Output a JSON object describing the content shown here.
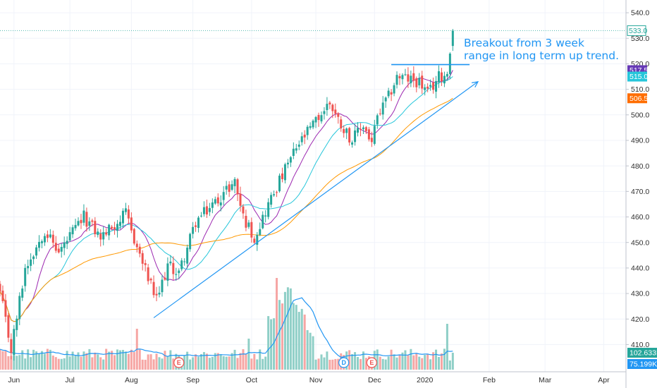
{
  "colors": {
    "up": "#26a69a",
    "down": "#ef5350",
    "vol_up": "#8fcfc7",
    "vol_down": "#f6a6a4",
    "ma_fast": "#9c27b0",
    "ma_mid": "#26c6da",
    "ma_slow": "#ff9800",
    "vol_ma": "#2196f3",
    "annotation": "#2196f3",
    "grid": "#f0f3fa",
    "axis_text": "#2f2f2f"
  },
  "price_tags": [
    {
      "label": "533.0",
      "value": 533.0,
      "style": "outline",
      "color": "#26a69a"
    },
    {
      "label": "517.5",
      "value": 517.5,
      "style": "fill",
      "color": "#673ab7"
    },
    {
      "label": "515.0",
      "value": 515.0,
      "style": "fill",
      "color": "#26c6da"
    },
    {
      "label": "506.5",
      "value": 506.5,
      "style": "fill",
      "color": "#ff6d00"
    }
  ],
  "volume_tags": [
    {
      "label": "102.633K",
      "color": "#26a69a",
      "level": "upper"
    },
    {
      "label": "75.199K",
      "color": "#2196f3",
      "level": "lower"
    }
  ],
  "annotation_text": {
    "line1": "Breakout from 3 week",
    "line2": "range in long term up trend."
  },
  "event_markers": [
    {
      "label": "E",
      "date_index": 64,
      "color": "#ef5350"
    },
    {
      "label": "D",
      "date_index": 123,
      "color": "#2196f3"
    },
    {
      "label": "E",
      "date_index": 133,
      "color": "#ef5350"
    }
  ],
  "chart_data": {
    "type": "candlestick",
    "ylim": [
      400.0,
      545.0
    ],
    "y_ticks": [
      "410.0",
      "420.0",
      "430.0",
      "440.0",
      "450.0",
      "460.0",
      "470.0",
      "480.0",
      "490.0",
      "500.0",
      "510.0",
      "520.0",
      "530.0",
      "540.0"
    ],
    "x_ticks": [
      {
        "label": "Jun",
        "index": 5
      },
      {
        "label": "Jul",
        "index": 25
      },
      {
        "label": "Aug",
        "index": 47
      },
      {
        "label": "Sep",
        "index": 69
      },
      {
        "label": "Oct",
        "index": 90
      },
      {
        "label": "Nov",
        "index": 113
      },
      {
        "label": "Dec",
        "index": 134
      },
      {
        "label": "2020",
        "index": 152
      },
      {
        "label": "Feb",
        "index": 175
      },
      {
        "label": "Mar",
        "index": 195
      },
      {
        "label": "Apr",
        "index": 216
      }
    ],
    "x_range": [
      0,
      225
    ],
    "candle_count": 163,
    "price_path": [
      {
        "i": 0,
        "p": 430
      },
      {
        "i": 4,
        "p": 408
      },
      {
        "i": 9,
        "p": 440
      },
      {
        "i": 16,
        "p": 455
      },
      {
        "i": 21,
        "p": 446
      },
      {
        "i": 30,
        "p": 460
      },
      {
        "i": 36,
        "p": 452
      },
      {
        "i": 45,
        "p": 461
      },
      {
        "i": 50,
        "p": 445
      },
      {
        "i": 56,
        "p": 427
      },
      {
        "i": 60,
        "p": 441
      },
      {
        "i": 64,
        "p": 438
      },
      {
        "i": 70,
        "p": 458
      },
      {
        "i": 78,
        "p": 467
      },
      {
        "i": 84,
        "p": 474
      },
      {
        "i": 87,
        "p": 460
      },
      {
        "i": 91,
        "p": 452
      },
      {
        "i": 96,
        "p": 465
      },
      {
        "i": 100,
        "p": 474
      },
      {
        "i": 106,
        "p": 487
      },
      {
        "i": 112,
        "p": 496
      },
      {
        "i": 118,
        "p": 505
      },
      {
        "i": 121,
        "p": 498
      },
      {
        "i": 126,
        "p": 490
      },
      {
        "i": 130,
        "p": 496
      },
      {
        "i": 133,
        "p": 489
      },
      {
        "i": 135,
        "p": 499
      },
      {
        "i": 139,
        "p": 507
      },
      {
        "i": 142,
        "p": 515
      },
      {
        "i": 150,
        "p": 513
      },
      {
        "i": 153,
        "p": 508
      },
      {
        "i": 157,
        "p": 515
      },
      {
        "i": 160,
        "p": 516
      },
      {
        "i": 161,
        "p": 524
      },
      {
        "i": 162,
        "p": 533
      }
    ],
    "series": [
      {
        "name": "MA fast",
        "period": 10,
        "color": "#9c27b0",
        "last": 517.5
      },
      {
        "name": "MA mid",
        "period": 20,
        "color": "#26c6da",
        "last": 515.0
      },
      {
        "name": "MA slow",
        "period": 50,
        "color": "#ff9800",
        "last": 506.5
      }
    ],
    "volume": {
      "ma_last_k": 75.199,
      "last_k": 102.633
    },
    "horizontal_level": {
      "value": 519.7,
      "from_index": 140,
      "to_index": 168
    },
    "trend_arrow": {
      "from": {
        "i": 55,
        "p": 420.5
      },
      "to": {
        "i": 171,
        "p": 513
      }
    }
  }
}
